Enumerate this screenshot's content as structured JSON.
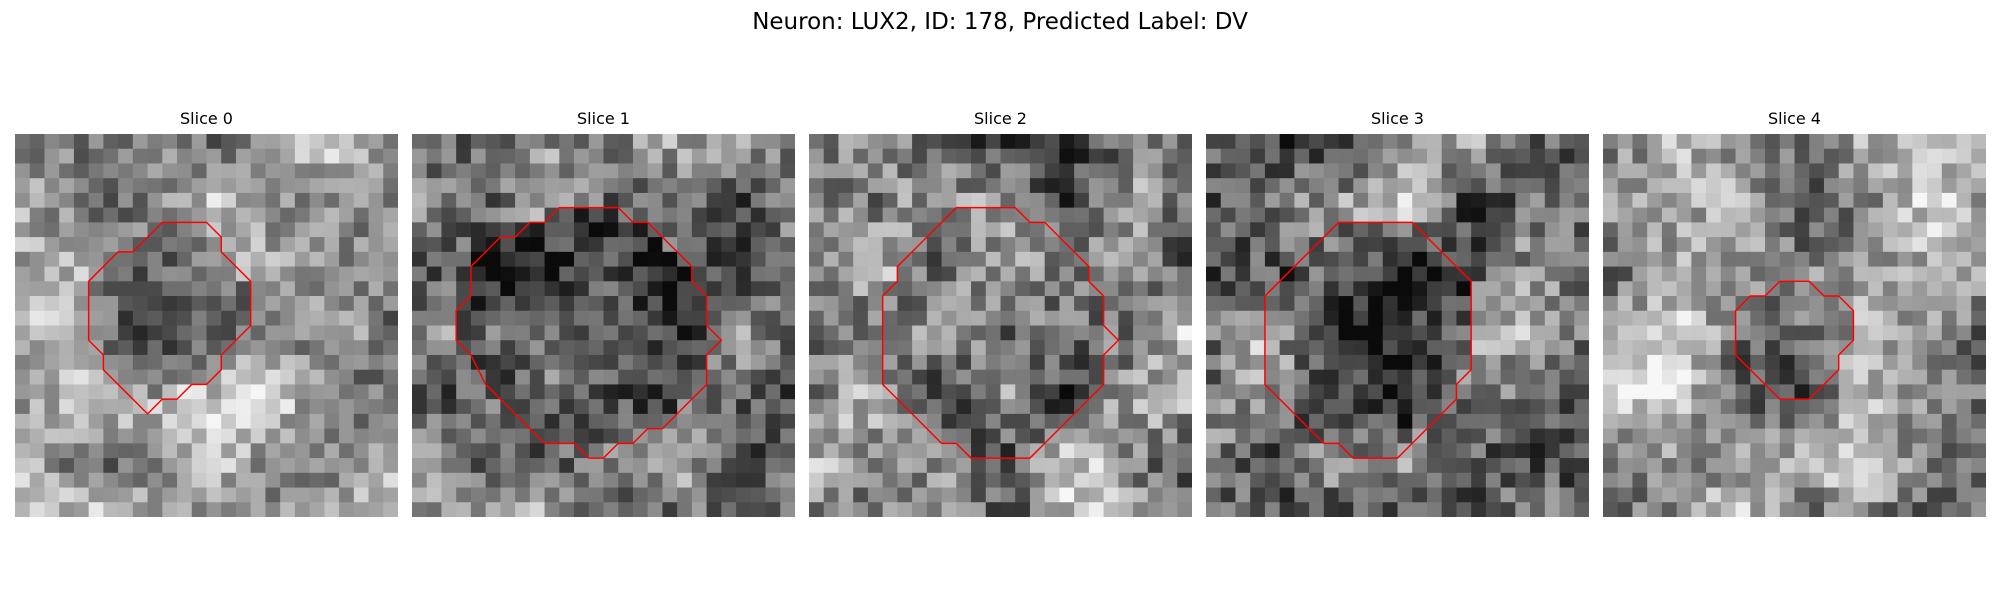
{
  "figure": {
    "title": "Neuron: LUX2, ID: 178, Predicted Label: DV"
  },
  "slices": [
    {
      "label": "Slice 0",
      "seed": 11,
      "contrast": 1.0,
      "brightness": 0.62,
      "darkness_inside": 0.18,
      "contour": [
        [
          10,
          6
        ],
        [
          13,
          6
        ],
        [
          14,
          7
        ],
        [
          14,
          8
        ],
        [
          16,
          10
        ],
        [
          16,
          11
        ],
        [
          16,
          13
        ],
        [
          14,
          15
        ],
        [
          14,
          16
        ],
        [
          13,
          17
        ],
        [
          12,
          17
        ],
        [
          11,
          18
        ],
        [
          10,
          18
        ],
        [
          9,
          19
        ],
        [
          8,
          18
        ],
        [
          7,
          17
        ],
        [
          6,
          16
        ],
        [
          6,
          15
        ],
        [
          5,
          14
        ],
        [
          5,
          12
        ],
        [
          5,
          10
        ],
        [
          6,
          9
        ],
        [
          7,
          8
        ],
        [
          8,
          8
        ],
        [
          9,
          7
        ],
        [
          10,
          6
        ]
      ]
    },
    {
      "label": "Slice 1",
      "seed": 23,
      "contrast": 1.1,
      "brightness": 0.5,
      "darkness_inside": 0.25,
      "contour": [
        [
          11,
          5
        ],
        [
          14,
          5
        ],
        [
          15,
          6
        ],
        [
          16,
          6
        ],
        [
          17,
          7
        ],
        [
          18,
          8
        ],
        [
          19,
          9
        ],
        [
          19,
          10
        ],
        [
          20,
          11
        ],
        [
          20,
          13
        ],
        [
          21,
          14
        ],
        [
          20,
          15
        ],
        [
          20,
          17
        ],
        [
          19,
          18
        ],
        [
          18,
          19
        ],
        [
          17,
          20
        ],
        [
          16,
          20
        ],
        [
          15,
          21
        ],
        [
          14,
          21
        ],
        [
          13,
          22
        ],
        [
          12,
          22
        ],
        [
          11,
          21
        ],
        [
          10,
          21
        ],
        [
          9,
          21
        ],
        [
          8,
          20
        ],
        [
          7,
          19
        ],
        [
          6,
          18
        ],
        [
          5,
          17
        ],
        [
          4,
          15
        ],
        [
          3,
          14
        ],
        [
          3,
          12
        ],
        [
          4,
          11
        ],
        [
          4,
          9
        ],
        [
          5,
          8
        ],
        [
          6,
          7
        ],
        [
          7,
          7
        ],
        [
          8,
          6
        ],
        [
          9,
          6
        ],
        [
          10,
          5
        ],
        [
          11,
          5
        ]
      ]
    },
    {
      "label": "Slice 2",
      "seed": 37,
      "contrast": 1.2,
      "brightness": 0.55,
      "darkness_inside": 0.1,
      "contour": [
        [
          11,
          5
        ],
        [
          14,
          5
        ],
        [
          15,
          6
        ],
        [
          16,
          6
        ],
        [
          17,
          7
        ],
        [
          18,
          8
        ],
        [
          19,
          9
        ],
        [
          19,
          10
        ],
        [
          20,
          11
        ],
        [
          20,
          13
        ],
        [
          21,
          14
        ],
        [
          20,
          15
        ],
        [
          20,
          17
        ],
        [
          19,
          18
        ],
        [
          18,
          19
        ],
        [
          17,
          20
        ],
        [
          16,
          21
        ],
        [
          15,
          22
        ],
        [
          13,
          22
        ],
        [
          11,
          22
        ],
        [
          10,
          21
        ],
        [
          9,
          21
        ],
        [
          8,
          20
        ],
        [
          7,
          19
        ],
        [
          6,
          18
        ],
        [
          5,
          17
        ],
        [
          5,
          15
        ],
        [
          5,
          13
        ],
        [
          5,
          11
        ],
        [
          6,
          10
        ],
        [
          6,
          9
        ],
        [
          7,
          8
        ],
        [
          8,
          7
        ],
        [
          9,
          6
        ],
        [
          10,
          5
        ],
        [
          11,
          5
        ]
      ]
    },
    {
      "label": "Slice 3",
      "seed": 53,
      "contrast": 1.2,
      "brightness": 0.52,
      "darkness_inside": 0.18,
      "contour": [
        [
          10,
          6
        ],
        [
          14,
          6
        ],
        [
          15,
          7
        ],
        [
          16,
          8
        ],
        [
          17,
          9
        ],
        [
          18,
          10
        ],
        [
          18,
          12
        ],
        [
          18,
          14
        ],
        [
          18,
          16
        ],
        [
          17,
          17
        ],
        [
          17,
          18
        ],
        [
          16,
          19
        ],
        [
          15,
          20
        ],
        [
          14,
          21
        ],
        [
          13,
          22
        ],
        [
          11,
          22
        ],
        [
          10,
          22
        ],
        [
          9,
          21
        ],
        [
          8,
          21
        ],
        [
          7,
          20
        ],
        [
          6,
          19
        ],
        [
          5,
          18
        ],
        [
          4,
          17
        ],
        [
          4,
          15
        ],
        [
          4,
          13
        ],
        [
          4,
          11
        ],
        [
          5,
          10
        ],
        [
          6,
          9
        ],
        [
          7,
          8
        ],
        [
          8,
          7
        ],
        [
          9,
          6
        ],
        [
          10,
          6
        ]
      ]
    },
    {
      "label": "Slice 4",
      "seed": 71,
      "contrast": 1.1,
      "brightness": 0.58,
      "darkness_inside": 0.05,
      "contour": [
        [
          12,
          10
        ],
        [
          14,
          10
        ],
        [
          15,
          11
        ],
        [
          16,
          11
        ],
        [
          17,
          12
        ],
        [
          17,
          13
        ],
        [
          17,
          14
        ],
        [
          16,
          15
        ],
        [
          16,
          16
        ],
        [
          15,
          17
        ],
        [
          14,
          18
        ],
        [
          12,
          18
        ],
        [
          11,
          17
        ],
        [
          10,
          16
        ],
        [
          9,
          15
        ],
        [
          9,
          14
        ],
        [
          9,
          12
        ],
        [
          10,
          11
        ],
        [
          11,
          11
        ],
        [
          12,
          10
        ]
      ]
    }
  ],
  "colors": {
    "contour": "#ff0000",
    "background": "#ffffff"
  }
}
